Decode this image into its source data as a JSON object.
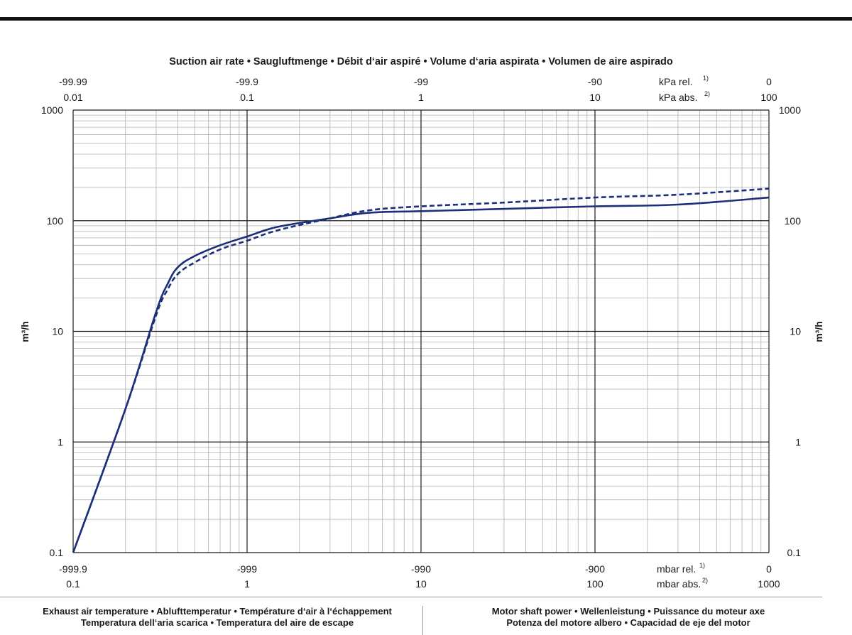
{
  "chart_data": {
    "type": "line",
    "title": "Suction air rate  •  Saugluftmenge  •  Débit d‘air aspiré  •  Volume d‘aria aspirata  •  Volumen de aire aspirado",
    "ylabel": "m³/h",
    "yscale": "log",
    "ylim": [
      0.1,
      1000
    ],
    "yticks": [
      "1000",
      "100",
      "10",
      "1",
      "0.1"
    ],
    "x_top": {
      "rel_ticks": [
        "-99.99",
        "-99.9",
        "-99",
        "-90",
        "0"
      ],
      "abs_ticks": [
        "0.01",
        "0.1",
        "1",
        "10",
        "100"
      ],
      "rel_unit": "kPa rel.",
      "rel_sup": "1)",
      "abs_unit": "kPa abs.",
      "abs_sup": "2)"
    },
    "x_bottom": {
      "rel_ticks": [
        "-999.9",
        "-999",
        "-990",
        "-900",
        "0"
      ],
      "abs_ticks": [
        "0.1",
        "1",
        "10",
        "100",
        "1000"
      ],
      "rel_unit": "mbar rel.",
      "rel_sup": "1)",
      "abs_unit": "mbar abs.",
      "abs_sup": "2)"
    },
    "xscale": "log",
    "xlim_mbar_abs": [
      0.1,
      1000
    ],
    "grid": true,
    "series": [
      {
        "style": "solid",
        "color": "#1c2f7a",
        "x_mbar_abs": [
          0.1,
          0.2,
          0.3,
          0.35,
          0.4,
          0.5,
          0.7,
          1,
          1.5,
          3,
          5,
          10,
          30,
          100,
          300,
          1000
        ],
        "y_m3h": [
          0.1,
          2,
          15,
          27,
          38,
          48,
          60,
          72,
          88,
          105,
          118,
          122,
          128,
          135,
          140,
          162
        ]
      },
      {
        "style": "dashed",
        "color": "#1c2f7a",
        "x_mbar_abs": [
          0.1,
          0.2,
          0.3,
          0.35,
          0.4,
          0.5,
          0.7,
          1,
          1.5,
          3,
          5,
          10,
          30,
          100,
          300,
          1000
        ],
        "y_m3h": [
          0.1,
          2,
          14,
          24,
          33,
          42,
          55,
          66,
          82,
          105,
          124,
          135,
          146,
          162,
          172,
          195
        ]
      }
    ]
  },
  "footer": {
    "left_line1": "Exhaust air temperature  •  Ablufttemperatur  •  Température d‘air à l‘échappement",
    "left_line2": "Temperatura dell‘aria scarica  •  Temperatura del aire de escape",
    "right_line1": "Motor shaft power  •  Wellenleistung  •  Puissance du moteur axe",
    "right_line2": "Potenza del motore albero  •  Capacidad de eje del motor"
  },
  "colors": {
    "curve": "#1c2f7a",
    "grid_major": "#1a1a1a",
    "grid_minor": "#b0b0b0"
  }
}
